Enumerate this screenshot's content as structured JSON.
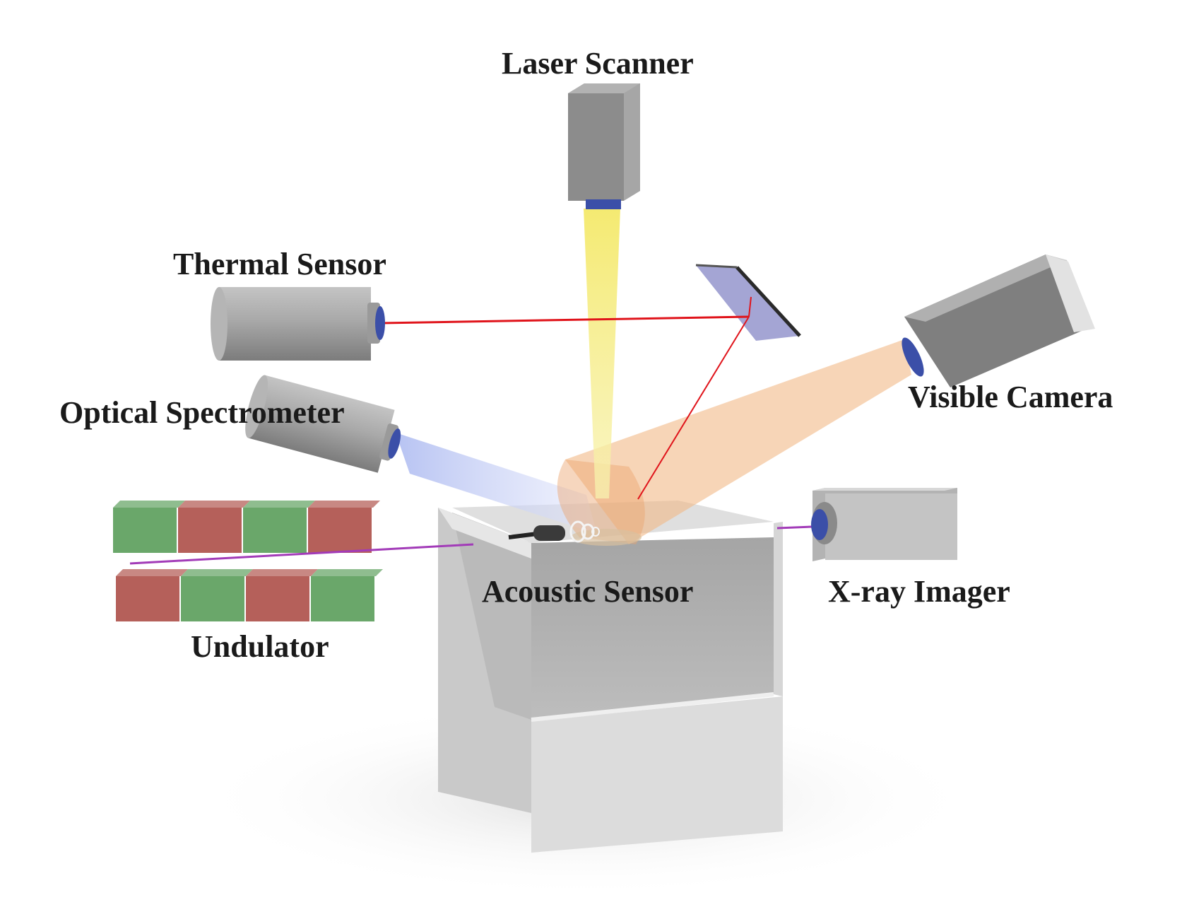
{
  "labels": {
    "laser_scanner": "Laser Scanner",
    "thermal_sensor": "Thermal Sensor",
    "optical_spectrometer": "Optical Spectrometer",
    "visible_camera": "Visible Camera",
    "acoustic_sensor": "Acoustic Sensor",
    "xray_imager": "X-ray Imager",
    "undulator": "Undulator"
  },
  "colors": {
    "background": "#ffffff",
    "label_text": "#1a1a1a",
    "laser_beam": "#f6eb6a",
    "thermal_beam": "#e0141b",
    "camera_cone": "#f2b987",
    "spectrometer_cone": "#bcc8f2",
    "xray_beam": "#a23bb8",
    "undulator_green": "#6aa76a",
    "undulator_red": "#b5605a",
    "device_gray": "#8e8e8e",
    "lens_blue": "#3b4fa8"
  }
}
